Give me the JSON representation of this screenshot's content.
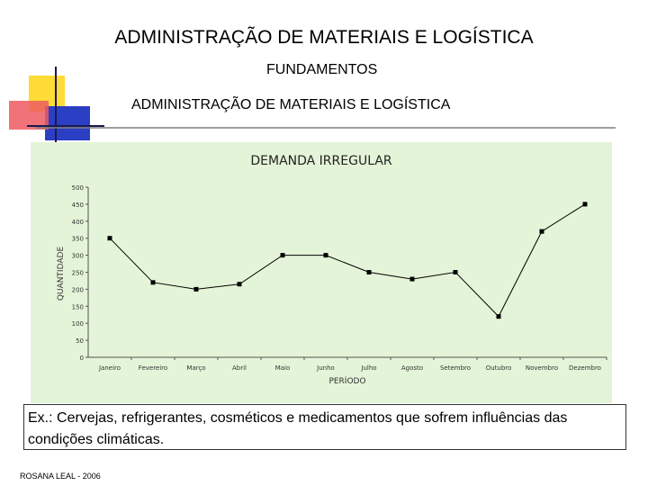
{
  "slide": {
    "title": "ADMINISTRAÇÃO DE MATERIAIS E LOGÍSTICA",
    "subtitle": "FUNDAMENTOS",
    "subtitle2": "ADMINISTRAÇÃO DE MATERIAIS E LOGÍSTICA",
    "caption": "Ex.: Cervejas, refrigerantes, cosméticos e medicamentos que sofrem influências das condições climáticas.",
    "footer": "ROSANA LEAL - 2006"
  },
  "colors": {
    "chart_background": "#e4f4d8",
    "line": "#000000",
    "deco_yellow": "#ffdb36",
    "deco_red": "#ef5a62",
    "deco_blue": "#2b3fc4"
  },
  "chart_data": {
    "type": "line",
    "title": "DEMANDA IRREGULAR",
    "xlabel": "PERÍODO",
    "ylabel": "QUANTIDADE",
    "ylim": [
      0,
      500
    ],
    "yticks": [
      "0",
      "50",
      "100",
      "150",
      "200",
      "250",
      "300",
      "350",
      "400",
      "450",
      "500"
    ],
    "categories": [
      "Janeiro",
      "Fevereiro",
      "Março",
      "Abril",
      "Maio",
      "Junho",
      "Julho",
      "Agosto",
      "Setembro",
      "Outubro",
      "Novembro",
      "Dezembro"
    ],
    "values": [
      350,
      220,
      200,
      215,
      300,
      300,
      250,
      230,
      250,
      120,
      370,
      450
    ],
    "grid": false,
    "legend": "none"
  }
}
